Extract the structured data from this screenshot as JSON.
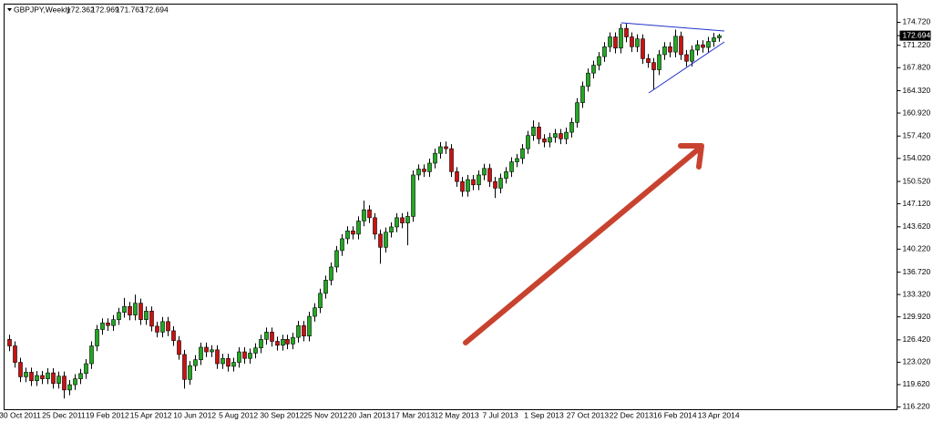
{
  "chart_data": {
    "type": "candlestick",
    "symbol": "GBPJPY,Weekly",
    "up_color": "#22a822",
    "down_color": "#cc1111",
    "grid": false,
    "ylim": [
      115.8,
      177.49
    ],
    "yticks": [
      {
        "value": 174.72,
        "label": "174.720"
      },
      {
        "value": 171.22,
        "label": "171.220"
      },
      {
        "value": 167.82,
        "label": "167.820"
      },
      {
        "value": 164.32,
        "label": "164.320"
      },
      {
        "value": 160.92,
        "label": "160.920"
      },
      {
        "value": 157.42,
        "label": "157.420"
      },
      {
        "value": 154.02,
        "label": "154.020"
      },
      {
        "value": 150.52,
        "label": "150.520"
      },
      {
        "value": 147.12,
        "label": "147.120"
      },
      {
        "value": 143.62,
        "label": "143.620"
      },
      {
        "value": 140.22,
        "label": "140.220"
      },
      {
        "value": 136.72,
        "label": "136.720"
      },
      {
        "value": 133.32,
        "label": "133.320"
      },
      {
        "value": 129.92,
        "label": "129.920"
      },
      {
        "value": 126.42,
        "label": "126.420"
      },
      {
        "value": 123.02,
        "label": "123.020"
      },
      {
        "value": 119.62,
        "label": "119.620"
      },
      {
        "value": 116.22,
        "label": "116.220"
      }
    ],
    "categories": [
      null,
      null,
      "30 Oct 2011",
      null,
      null,
      null,
      null,
      null,
      null,
      null,
      "25 Dec 2011",
      null,
      null,
      null,
      null,
      null,
      null,
      null,
      "19 Feb 2012",
      null,
      null,
      null,
      null,
      null,
      null,
      null,
      "15 Apr 2012",
      null,
      null,
      null,
      null,
      null,
      null,
      null,
      "10 Jun 2012",
      null,
      null,
      null,
      null,
      null,
      null,
      null,
      "5 Aug 2012",
      null,
      null,
      null,
      null,
      null,
      null,
      null,
      "30 Sep 2012",
      null,
      null,
      null,
      null,
      null,
      null,
      null,
      "25 Nov 2012",
      null,
      null,
      null,
      null,
      null,
      null,
      null,
      "20 Jan 2013",
      null,
      null,
      null,
      null,
      null,
      null,
      null,
      "17 Mar 2013",
      null,
      null,
      null,
      null,
      null,
      null,
      null,
      "12 May 2013",
      null,
      null,
      null,
      null,
      null,
      null,
      null,
      "7 Jul 2013",
      null,
      null,
      null,
      null,
      null,
      null,
      null,
      "1 Sep 2013",
      null,
      null,
      null,
      null,
      null,
      null,
      null,
      "27 Oct 2013",
      null,
      null,
      null,
      null,
      null,
      null,
      null,
      "22 Dec 2013",
      null,
      null,
      null,
      null,
      null,
      null,
      null,
      "16 Feb 2014",
      null,
      null,
      null,
      null,
      null,
      null,
      null,
      "13 Apr 2014"
    ],
    "open": [
      126.5,
      125.5,
      123.0,
      120.8,
      121.5,
      120.2,
      121.0,
      120.5,
      121.4,
      119.8,
      120.9,
      118.8,
      119.6,
      120.5,
      121.3,
      122.8,
      125.5,
      128.0,
      129.0,
      128.6,
      129.5,
      130.6,
      131.5,
      130.2,
      132.0,
      129.5,
      130.8,
      128.5,
      127.6,
      129.2,
      127.8,
      126.3,
      124.2,
      120.4,
      122.5,
      123.4,
      125.3,
      124.6,
      124.9,
      122.8,
      123.6,
      122.4,
      123.0,
      124.6,
      123.6,
      124.4,
      125.2,
      126.5,
      127.6,
      126.2,
      125.6,
      126.5,
      125.8,
      126.8,
      128.6,
      127.0,
      130.0,
      131.3,
      133.5,
      135.5,
      137.5,
      140.0,
      141.8,
      143.0,
      142.5,
      144.5,
      146.2,
      145.0,
      142.5,
      140.5,
      142.8,
      143.6,
      145.0,
      144.2,
      145.2,
      151.5,
      152.4,
      152.0,
      153.3,
      154.8,
      155.8,
      155.5,
      152.0,
      150.5,
      149.0,
      150.8,
      150.0,
      151.5,
      152.5,
      150.5,
      149.5,
      151.0,
      152.0,
      153.5,
      154.0,
      155.5,
      157.5,
      158.8,
      157.0,
      156.5,
      157.2,
      157.8,
      157.0,
      158.0,
      159.5,
      162.5,
      165.0,
      167.0,
      168.2,
      169.5,
      171.0,
      172.5,
      170.8,
      173.8,
      172.5,
      171.0,
      172.2,
      169.2,
      168.6,
      167.5,
      169.8,
      171.0,
      170.2,
      172.6,
      169.8,
      168.8,
      170.5,
      171.3,
      170.9,
      171.8,
      172.362
    ],
    "high": [
      127.2,
      126.2,
      123.7,
      122.2,
      122.2,
      121.7,
      121.7,
      122.1,
      122.1,
      121.6,
      121.6,
      120.3,
      121.2,
      122.0,
      123.5,
      126.2,
      128.7,
      129.7,
      129.7,
      130.2,
      131.3,
      132.8,
      132.2,
      133.3,
      132.7,
      131.5,
      131.5,
      129.2,
      129.9,
      129.9,
      128.5,
      127.0,
      124.9,
      123.2,
      124.1,
      126.0,
      126.0,
      125.6,
      125.6,
      124.3,
      124.3,
      123.7,
      125.3,
      125.3,
      125.1,
      125.9,
      127.2,
      128.3,
      128.3,
      126.9,
      127.2,
      127.2,
      127.5,
      129.3,
      129.3,
      130.7,
      132.0,
      134.2,
      136.2,
      138.2,
      140.7,
      142.5,
      143.7,
      143.7,
      145.2,
      147.6,
      146.9,
      145.7,
      143.2,
      143.5,
      144.3,
      145.7,
      145.7,
      145.9,
      152.2,
      153.1,
      153.1,
      154.0,
      155.5,
      156.5,
      156.6,
      156.2,
      152.7,
      151.2,
      151.5,
      151.5,
      152.2,
      153.2,
      153.2,
      151.2,
      151.7,
      152.7,
      154.2,
      154.7,
      156.2,
      158.2,
      159.8,
      159.5,
      157.7,
      157.9,
      158.5,
      158.5,
      158.7,
      160.2,
      163.2,
      165.7,
      167.7,
      168.9,
      170.2,
      171.7,
      173.2,
      173.2,
      174.5,
      174.5,
      173.2,
      172.9,
      172.9,
      169.9,
      169.3,
      170.5,
      171.7,
      171.7,
      173.6,
      173.3,
      170.5,
      171.2,
      172.0,
      172.0,
      172.5,
      173.1,
      172.969
    ],
    "low": [
      124.7,
      122.2,
      120.0,
      120.0,
      119.4,
      119.4,
      119.7,
      119.7,
      119.0,
      119.0,
      117.5,
      118.0,
      118.8,
      119.7,
      120.5,
      122.0,
      124.7,
      127.2,
      127.8,
      127.8,
      128.7,
      129.8,
      129.4,
      129.4,
      128.7,
      128.7,
      127.7,
      126.8,
      126.8,
      127.0,
      125.5,
      123.4,
      119.0,
      119.6,
      121.7,
      122.6,
      123.8,
      123.8,
      122.0,
      122.0,
      121.6,
      121.6,
      122.2,
      122.8,
      122.8,
      123.6,
      124.4,
      125.7,
      125.4,
      124.8,
      124.8,
      125.0,
      125.0,
      126.0,
      126.2,
      126.2,
      129.2,
      130.5,
      132.7,
      134.7,
      136.7,
      139.2,
      141.0,
      141.7,
      141.7,
      143.7,
      144.2,
      141.7,
      138.0,
      139.7,
      142.0,
      142.8,
      143.4,
      140.8,
      144.4,
      150.7,
      151.2,
      151.2,
      152.5,
      154.0,
      154.7,
      151.2,
      149.7,
      148.2,
      148.2,
      149.2,
      149.2,
      150.7,
      149.7,
      148.0,
      148.7,
      150.2,
      151.2,
      152.7,
      153.2,
      154.7,
      156.7,
      156.2,
      155.7,
      155.7,
      156.4,
      156.2,
      156.2,
      157.2,
      158.7,
      161.7,
      164.2,
      166.2,
      167.4,
      168.7,
      170.2,
      170.0,
      170.0,
      171.7,
      170.2,
      170.2,
      168.4,
      167.8,
      164.5,
      166.7,
      169.0,
      169.4,
      169.4,
      169.0,
      168.0,
      168.0,
      169.7,
      170.1,
      170.1,
      171.0,
      171.763
    ],
    "close": [
      125.5,
      123.0,
      120.8,
      121.5,
      120.2,
      121.0,
      120.5,
      121.4,
      119.8,
      120.9,
      118.8,
      119.6,
      120.5,
      121.3,
      122.8,
      125.5,
      128.0,
      129.0,
      128.6,
      129.5,
      130.6,
      131.5,
      130.2,
      132.0,
      129.5,
      130.8,
      128.5,
      127.6,
      129.2,
      127.8,
      126.3,
      124.2,
      120.4,
      122.5,
      123.4,
      125.3,
      124.6,
      124.9,
      122.8,
      123.6,
      122.4,
      123.0,
      124.6,
      123.6,
      124.4,
      125.2,
      126.5,
      127.6,
      126.2,
      125.6,
      126.5,
      125.8,
      126.8,
      128.6,
      127.0,
      130.0,
      131.3,
      133.5,
      135.5,
      137.5,
      140.0,
      141.8,
      143.0,
      142.5,
      144.5,
      146.2,
      145.0,
      142.5,
      140.5,
      142.8,
      143.6,
      145.0,
      144.2,
      145.2,
      151.5,
      152.4,
      152.0,
      153.3,
      154.8,
      155.8,
      155.5,
      152.0,
      150.5,
      149.0,
      150.8,
      150.0,
      151.5,
      152.5,
      150.5,
      149.5,
      151.0,
      152.0,
      153.5,
      154.0,
      155.5,
      157.5,
      158.8,
      157.0,
      156.5,
      157.2,
      157.8,
      157.0,
      158.0,
      159.5,
      162.5,
      165.0,
      167.0,
      168.2,
      169.5,
      171.0,
      172.5,
      170.8,
      173.8,
      172.5,
      171.0,
      172.2,
      169.2,
      168.6,
      167.5,
      169.8,
      171.0,
      170.2,
      172.6,
      169.8,
      168.8,
      170.5,
      171.3,
      170.9,
      171.8,
      172.362,
      172.694
    ]
  }
}
